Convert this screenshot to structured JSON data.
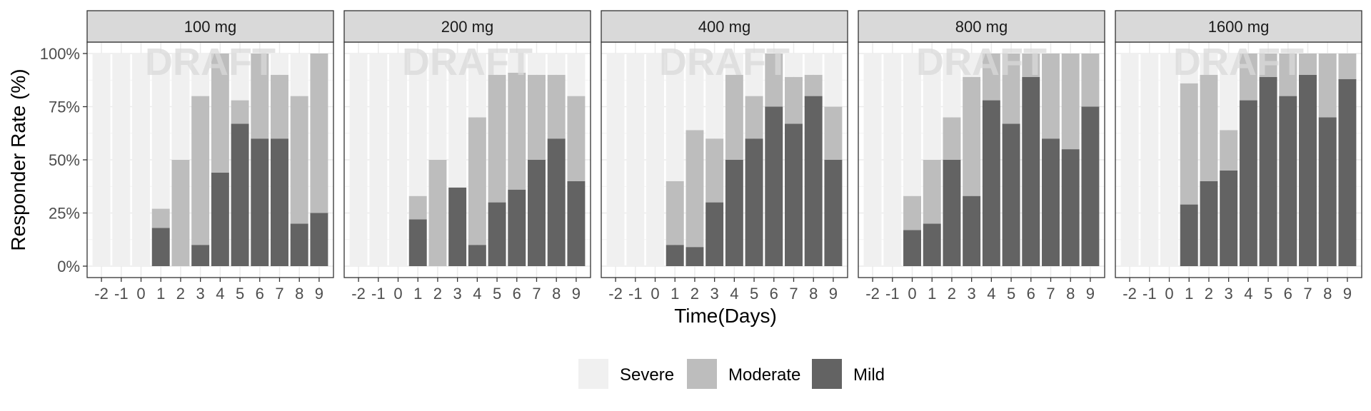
{
  "chart_data": {
    "type": "bar",
    "stacked": true,
    "xlabel": "Time(Days)",
    "ylabel": "Responder Rate (%)",
    "ylim": [
      0,
      100
    ],
    "yticks": [
      0,
      25,
      50,
      75,
      100
    ],
    "ytick_labels": [
      "0%",
      "25%",
      "50%",
      "75%",
      "100%"
    ],
    "categories": [
      "-2",
      "-1",
      "0",
      "1",
      "2",
      "3",
      "4",
      "5",
      "6",
      "7",
      "8",
      "9"
    ],
    "watermark": "DRAFT",
    "grid": true,
    "legend_position": "bottom",
    "legend": [
      {
        "name": "Severe",
        "color": "#f0f0f0"
      },
      {
        "name": "Moderate",
        "color": "#bdbdbd"
      },
      {
        "name": "Mild",
        "color": "#636363"
      }
    ],
    "panels": [
      {
        "label": "100 mg",
        "mild": [
          0,
          0,
          0,
          18,
          0,
          10,
          44,
          67,
          60,
          60,
          20,
          25
        ],
        "moderate": [
          0,
          0,
          0,
          9,
          50,
          70,
          56,
          11,
          40,
          30,
          60,
          75
        ],
        "severe": [
          100,
          100,
          100,
          73,
          50,
          20,
          0,
          22,
          0,
          10,
          20,
          0
        ]
      },
      {
        "label": "200 mg",
        "mild": [
          0,
          0,
          0,
          22,
          0,
          37,
          10,
          30,
          36,
          50,
          60,
          40
        ],
        "moderate": [
          0,
          0,
          0,
          11,
          50,
          0,
          60,
          60,
          55,
          40,
          30,
          40
        ],
        "severe": [
          100,
          100,
          100,
          67,
          50,
          63,
          30,
          10,
          9,
          10,
          10,
          20
        ]
      },
      {
        "label": "400 mg",
        "mild": [
          0,
          0,
          0,
          10,
          9,
          30,
          50,
          60,
          75,
          67,
          80,
          50
        ],
        "moderate": [
          0,
          0,
          0,
          30,
          55,
          30,
          40,
          20,
          25,
          22,
          10,
          25
        ],
        "severe": [
          100,
          100,
          100,
          60,
          36,
          40,
          10,
          20,
          0,
          11,
          10,
          25
        ]
      },
      {
        "label": "800 mg",
        "mild": [
          0,
          0,
          17,
          20,
          50,
          33,
          78,
          67,
          89,
          60,
          55,
          75
        ],
        "moderate": [
          0,
          0,
          16,
          30,
          20,
          56,
          22,
          33,
          11,
          40,
          45,
          25
        ],
        "severe": [
          100,
          100,
          67,
          50,
          30,
          11,
          0,
          0,
          0,
          0,
          0,
          0
        ]
      },
      {
        "label": "1600 mg",
        "mild": [
          0,
          0,
          0,
          29,
          40,
          45,
          78,
          89,
          80,
          90,
          70,
          88
        ],
        "moderate": [
          0,
          0,
          0,
          57,
          50,
          19,
          22,
          11,
          20,
          10,
          30,
          12
        ],
        "severe": [
          100,
          100,
          100,
          14,
          10,
          36,
          0,
          0,
          0,
          0,
          0,
          0
        ]
      }
    ]
  }
}
